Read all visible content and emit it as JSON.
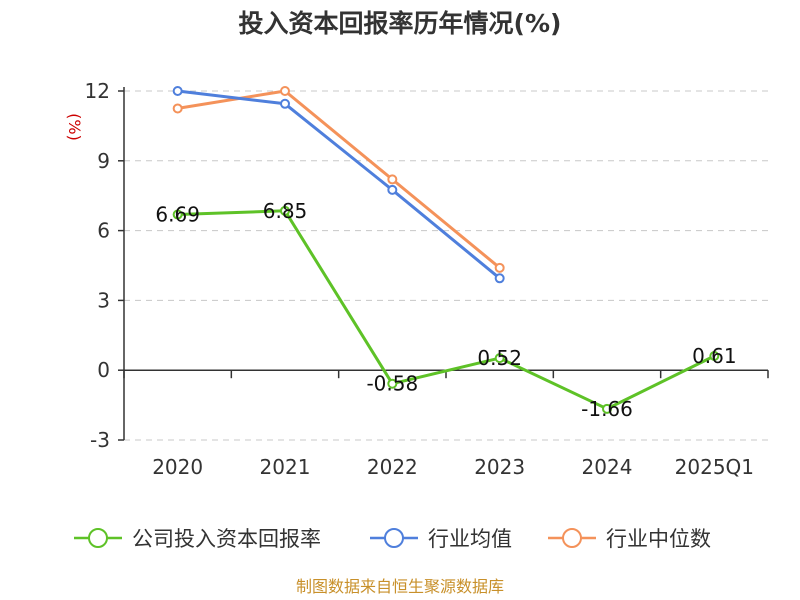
{
  "chart_data": {
    "type": "line",
    "title": "投入资本回报率历年情况(%)",
    "ylabel": "(%)",
    "categories": [
      "2020",
      "2021",
      "2022",
      "2023",
      "2024",
      "2025Q1"
    ],
    "ylim": [
      -3,
      12
    ],
    "yticks": [
      -3,
      0,
      3,
      6,
      9,
      12
    ],
    "grid": true,
    "legend_position": "bottom",
    "series": [
      {
        "name": "公司投入资本回报率",
        "color": "#5ec227",
        "values": [
          6.69,
          6.85,
          -0.58,
          0.52,
          -1.66,
          0.61
        ],
        "labels": [
          "6.69",
          "6.85",
          "-0.58",
          "0.52",
          "-1.66",
          "0.61"
        ]
      },
      {
        "name": "行业均值",
        "color": "#4f7fdc",
        "values": [
          12.0,
          11.45,
          7.75,
          3.95,
          null,
          null
        ]
      },
      {
        "name": "行业中位数",
        "color": "#f4925a",
        "values": [
          11.25,
          12.0,
          8.2,
          4.4,
          null,
          null
        ]
      }
    ]
  },
  "source": "制图数据来自恒生聚源数据库"
}
